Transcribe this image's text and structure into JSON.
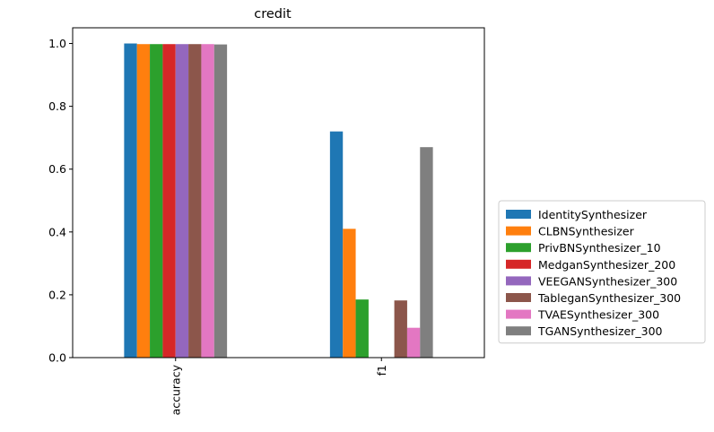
{
  "chart_data": {
    "type": "bar",
    "title": "credit",
    "xlabel": "",
    "ylabel": "",
    "categories": [
      "accuracy",
      "f1"
    ],
    "ylim": [
      0,
      1.05
    ],
    "yticks": [
      "0.0",
      "0.2",
      "0.4",
      "0.6",
      "0.8",
      "1.0"
    ],
    "grid": false,
    "legend_position": "outside-right",
    "series": [
      {
        "name": "IdentitySynthesizer",
        "color": "#1f77b4",
        "values": [
          1.0,
          0.72
        ]
      },
      {
        "name": "CLBNSynthesizer",
        "color": "#ff7f0e",
        "values": [
          0.998,
          0.41
        ]
      },
      {
        "name": "PrivBNSynthesizer_10",
        "color": "#2ca02c",
        "values": [
          0.998,
          0.185
        ]
      },
      {
        "name": "MedganSynthesizer_200",
        "color": "#d62728",
        "values": [
          0.998,
          0.0
        ]
      },
      {
        "name": "VEEGANSynthesizer_300",
        "color": "#9467bd",
        "values": [
          0.998,
          0.0
        ]
      },
      {
        "name": "TableganSynthesizer_300",
        "color": "#8c564b",
        "values": [
          0.998,
          0.182
        ]
      },
      {
        "name": "TVAESynthesizer_300",
        "color": "#e377c2",
        "values": [
          0.998,
          0.095
        ]
      },
      {
        "name": "TGANSynthesizer_300",
        "color": "#7f7f7f",
        "values": [
          0.997,
          0.67
        ]
      }
    ]
  }
}
